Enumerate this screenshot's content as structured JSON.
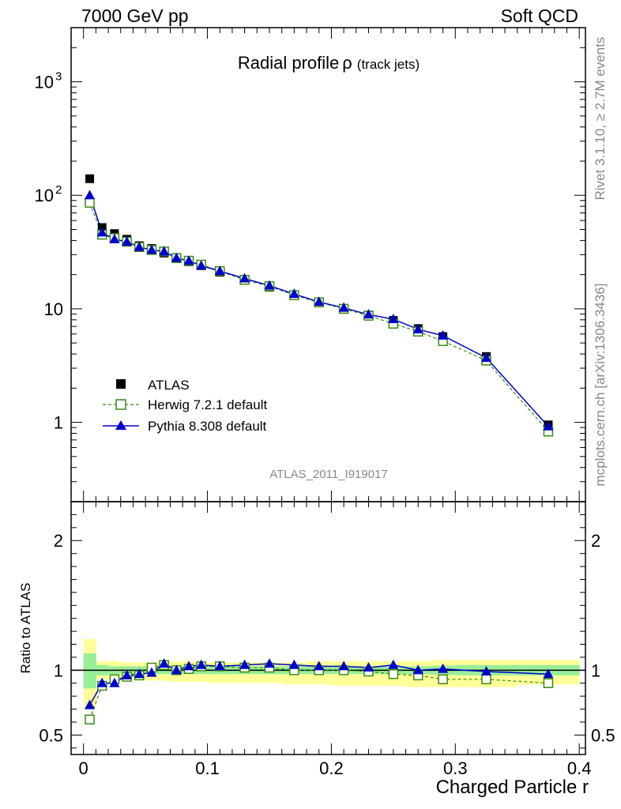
{
  "header": {
    "left": "7000 GeV pp",
    "right": "Soft QCD"
  },
  "side_text": {
    "top": "Rivet 3.1.10, ≥ 2.7M events",
    "bottom": "mcplots.cern.ch [arXiv:1306.3436]"
  },
  "analysis_tag": "ATLAS_2011_I919017",
  "chart_data": {
    "type": "scatter",
    "title": "Radial profile",
    "title_symbol": "ρ",
    "title_suffix": "(track jets)",
    "xlabel": "Charged Particle r",
    "ylabel_ratio": "Ratio to ATLAS",
    "xlim": [
      -0.01,
      0.405
    ],
    "main_ylim": [
      0.2,
      3000
    ],
    "main_yscale": "log",
    "ratio_ylim": [
      0.35,
      2.3
    ],
    "x_ticks": [
      {
        "v": 0,
        "label": "0"
      },
      {
        "v": 0.1,
        "label": "0.1"
      },
      {
        "v": 0.2,
        "label": "0.2"
      },
      {
        "v": 0.3,
        "label": "0.3"
      },
      {
        "v": 0.4,
        "label": "0.4"
      }
    ],
    "main_y_ticks": [
      {
        "v": 1,
        "label": "1"
      },
      {
        "v": 10,
        "label": "10"
      },
      {
        "v": 100,
        "label": "10",
        "sup": "2"
      },
      {
        "v": 1000,
        "label": "10",
        "sup": "3"
      }
    ],
    "ratio_y_ticks": [
      {
        "v": 0.5,
        "label": "0.5"
      },
      {
        "v": 1,
        "label": "1"
      },
      {
        "v": 2,
        "label": "2"
      }
    ],
    "legend_position": "bottom-left",
    "x": [
      0.005,
      0.015,
      0.025,
      0.035,
      0.045,
      0.055,
      0.065,
      0.075,
      0.085,
      0.095,
      0.11,
      0.13,
      0.15,
      0.17,
      0.19,
      0.21,
      0.23,
      0.25,
      0.27,
      0.29,
      0.325,
      0.375
    ],
    "bin_edges": [
      0,
      0.01,
      0.02,
      0.03,
      0.04,
      0.05,
      0.06,
      0.07,
      0.08,
      0.09,
      0.1,
      0.12,
      0.14,
      0.16,
      0.18,
      0.2,
      0.22,
      0.24,
      0.26,
      0.28,
      0.3,
      0.35,
      0.4
    ],
    "series": [
      {
        "name": "ATLAS",
        "color": "#000000",
        "marker": "filled-square",
        "values": [
          140,
          52,
          46,
          41,
          36,
          34,
          31,
          28,
          26,
          24,
          21,
          18,
          15.5,
          13.2,
          11.4,
          10.0,
          8.8,
          7.9,
          6.7,
          5.7,
          3.8,
          0.95
        ]
      },
      {
        "name": "Herwig 7.2.1 default",
        "color": "#3a8a14",
        "marker": "open-square",
        "line": "dashed",
        "values": [
          86,
          45,
          42,
          39,
          35,
          33,
          32,
          28,
          26.5,
          24.5,
          21.5,
          18,
          15.8,
          13.2,
          11.4,
          10.0,
          8.7,
          7.4,
          6.3,
          5.2,
          3.5,
          0.83
        ],
        "ratio": [
          0.62,
          0.88,
          0.93,
          0.95,
          0.96,
          1.02,
          1.04,
          1.0,
          1.01,
          1.03,
          1.03,
          1.02,
          1.02,
          1.0,
          1.0,
          1.0,
          0.99,
          0.97,
          0.96,
          0.93,
          0.93,
          0.9
        ]
      },
      {
        "name": "Pythia 8.308 default",
        "color": "#0000cc",
        "marker": "filled-triangle",
        "line": "solid",
        "values": [
          100,
          47,
          41,
          39,
          35,
          33,
          32,
          28,
          26.5,
          24,
          21.5,
          18.5,
          16,
          13.5,
          11.5,
          10.2,
          8.9,
          8.1,
          6.6,
          5.8,
          3.7,
          0.92
        ],
        "ratio": [
          0.73,
          0.9,
          0.9,
          0.96,
          0.97,
          0.98,
          1.05,
          1.0,
          1.03,
          1.04,
          1.03,
          1.04,
          1.05,
          1.04,
          1.03,
          1.03,
          1.02,
          1.04,
          1.0,
          1.01,
          0.99,
          0.97
        ]
      }
    ],
    "ratio_band_inner": [
      [
        0.86,
        1.13
      ],
      [
        0.96,
        1.04
      ],
      [
        0.97,
        1.03
      ],
      [
        0.97,
        1.03
      ],
      [
        0.97,
        1.03
      ],
      [
        0.97,
        1.03
      ],
      [
        0.97,
        1.03
      ],
      [
        0.97,
        1.03
      ],
      [
        0.97,
        1.03
      ],
      [
        0.97,
        1.03
      ],
      [
        0.97,
        1.03
      ],
      [
        0.97,
        1.03
      ],
      [
        0.97,
        1.03
      ],
      [
        0.97,
        1.03
      ],
      [
        0.97,
        1.03
      ],
      [
        0.97,
        1.03
      ],
      [
        0.97,
        1.03
      ],
      [
        0.97,
        1.03
      ],
      [
        0.97,
        1.03
      ],
      [
        0.965,
        1.035
      ],
      [
        0.96,
        1.04
      ],
      [
        0.96,
        1.04
      ]
    ],
    "ratio_band_outer": [
      [
        0.7,
        1.24
      ],
      [
        0.93,
        1.07
      ],
      [
        0.93,
        1.07
      ],
      [
        0.93,
        1.06
      ],
      [
        0.92,
        1.06
      ],
      [
        0.92,
        1.06
      ],
      [
        0.92,
        1.07
      ],
      [
        0.91,
        1.07
      ],
      [
        0.91,
        1.07
      ],
      [
        0.91,
        1.06
      ],
      [
        0.9,
        1.06
      ],
      [
        0.9,
        1.06
      ],
      [
        0.9,
        1.06
      ],
      [
        0.89,
        1.06
      ],
      [
        0.89,
        1.07
      ],
      [
        0.88,
        1.07
      ],
      [
        0.88,
        1.07
      ],
      [
        0.88,
        1.07
      ],
      [
        0.87,
        1.07
      ],
      [
        0.87,
        1.08
      ],
      [
        0.87,
        1.08
      ],
      [
        0.89,
        1.08
      ]
    ]
  }
}
